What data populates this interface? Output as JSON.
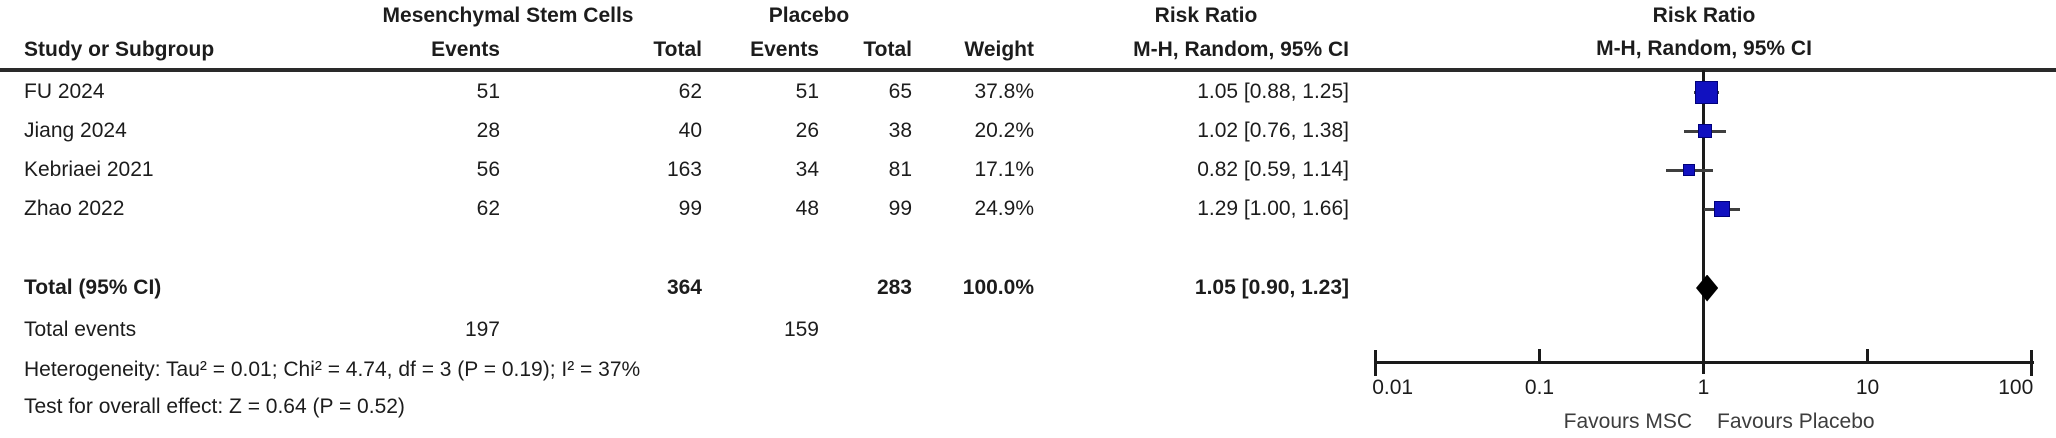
{
  "table": {
    "group_headers": {
      "msc": "Mesenchymal Stem Cells",
      "placebo": "Placebo",
      "risk_ratio": "Risk Ratio",
      "risk_ratio_plot": "Risk Ratio"
    },
    "col_headers": {
      "study": "Study or Subgroup",
      "msc_events": "Events",
      "msc_total": "Total",
      "placebo_events": "Events",
      "placebo_total": "Total",
      "weight": "Weight",
      "mh_ci": "M-H, Random, 95% CI",
      "mh_ci_plot": "M-H, Random, 95% CI"
    },
    "total_row": {
      "label": "Total (95% CI)",
      "msc_total": "364",
      "placebo_total": "283",
      "weight": "100.0%",
      "rr_ci": "1.05 [0.90, 1.23]"
    },
    "total_events_row": {
      "label": "Total events",
      "msc_events": "197",
      "placebo_events": "159"
    },
    "heterogeneity": "Heterogeneity: Tau² = 0.01; Chi² = 4.74, df = 3 (P = 0.19); I² = 37%",
    "overall_effect": "Test for overall effect: Z = 0.64 (P = 0.52)"
  },
  "chart_data": {
    "type": "forest",
    "effect_measure": "Risk Ratio",
    "method": "M-H, Random, 95% CI",
    "x_scale": "log10",
    "xlim": [
      0.01,
      100
    ],
    "x_ticks": [
      0.01,
      0.1,
      1,
      10,
      100
    ],
    "x_tick_labels": [
      "0.01",
      "0.1",
      "1",
      "10",
      "100"
    ],
    "favours_left": "Favours MSC",
    "favours_right": "Favours Placebo",
    "marker_color": "#1111c0",
    "diamond_color": "#000000",
    "studies": [
      {
        "name": "FU 2024",
        "msc_events": 51,
        "msc_total": 62,
        "placebo_events": 51,
        "placebo_total": 65,
        "weight": "37.8%",
        "weight_pct": 37.8,
        "rr": 1.05,
        "ci_low": 0.88,
        "ci_high": 1.25,
        "rr_ci": "1.05 [0.88, 1.25]"
      },
      {
        "name": "Jiang 2024",
        "msc_events": 28,
        "msc_total": 40,
        "placebo_events": 26,
        "placebo_total": 38,
        "weight": "20.2%",
        "weight_pct": 20.2,
        "rr": 1.02,
        "ci_low": 0.76,
        "ci_high": 1.38,
        "rr_ci": "1.02 [0.76, 1.38]"
      },
      {
        "name": "Kebriaei 2021",
        "msc_events": 56,
        "msc_total": 163,
        "placebo_events": 34,
        "placebo_total": 81,
        "weight": "17.1%",
        "weight_pct": 17.1,
        "rr": 0.82,
        "ci_low": 0.59,
        "ci_high": 1.14,
        "rr_ci": "0.82 [0.59, 1.14]"
      },
      {
        "name": "Zhao 2022",
        "msc_events": 62,
        "msc_total": 99,
        "placebo_events": 48,
        "placebo_total": 99,
        "weight": "24.9%",
        "weight_pct": 24.9,
        "rr": 1.29,
        "ci_low": 1.0,
        "ci_high": 1.66,
        "rr_ci": "1.29 [1.00, 1.66]"
      }
    ],
    "total": {
      "rr": 1.05,
      "ci_low": 0.9,
      "ci_high": 1.23
    }
  }
}
